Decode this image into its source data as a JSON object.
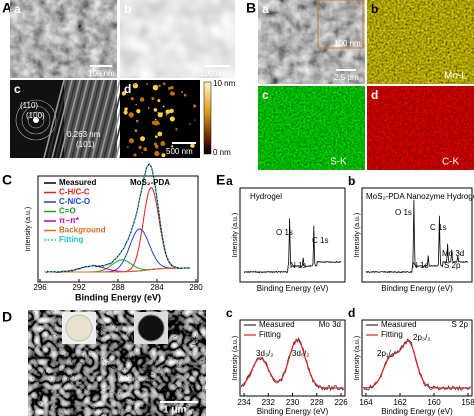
{
  "panels": {
    "A": {
      "label": "A",
      "sub": [
        "a",
        "b",
        "c",
        "d"
      ],
      "scale_bars": [
        "100 nm",
        "100 nm",
        "500 nm"
      ],
      "diffraction": [
        "(110)",
        "(100)"
      ],
      "lattice": [
        "0.263 nm",
        "(101)"
      ],
      "colorbar": [
        "10 nm",
        "0 nm"
      ]
    },
    "B": {
      "label": "B",
      "sub": [
        "a",
        "b",
        "c",
        "d"
      ],
      "scale_bars": [
        "100 nm",
        "2.5 μm"
      ],
      "elements": [
        "Mo-L",
        "S-K",
        "C-K"
      ]
    },
    "C": {
      "label": "C",
      "title": "MoS₂-PDA",
      "legend": [
        "Measured",
        "C-H/C-C",
        "C-N/C-O",
        "C=O",
        "π−π*",
        "Background",
        "Fitting"
      ],
      "x_label": "Binding Energy (eV)",
      "y_label": "Intensity (a.u.)",
      "x_ticks": [
        "296",
        "292",
        "288",
        "284",
        "280"
      ]
    },
    "D": {
      "label": "D",
      "scale_bar": "1 μm"
    },
    "E": {
      "label": "E",
      "a": {
        "sub": "a",
        "title": "Hydrogel",
        "peaks": [
          "O 1s",
          "C 1s",
          "N 1s"
        ],
        "x_label": "Binding Energy (eV)",
        "y_label": "Intensity (a.u.)"
      },
      "b": {
        "sub": "b",
        "title": "MoS₂-PDA Nanozyme Hydrogel",
        "peaks": [
          "O 1s",
          "C 1s",
          "N 1s",
          "Mo 3d",
          "S 2p"
        ],
        "x_label": "Binding Energy (eV)",
        "y_label": "Intensity (a.u.)"
      },
      "c": {
        "sub": "c",
        "title": "Mo 3d",
        "legend": [
          "Measured",
          "Fitting"
        ],
        "peaks": [
          "3d₃/₂",
          "3d₅/₂"
        ],
        "x_ticks": [
          "234",
          "232",
          "230",
          "228",
          "226"
        ],
        "x_label": "Binding Energy (eV)",
        "y_label": "Intensity (a.u.)"
      },
      "d": {
        "sub": "d",
        "title": "S 2p",
        "legend": [
          "Measured",
          "Fitting"
        ],
        "peaks": [
          "2p₁/₂",
          "2p₃/₂"
        ],
        "x_ticks": [
          "164",
          "162",
          "160",
          "158"
        ],
        "x_label": "Binding Energy (eV)",
        "y_label": "Intensity (a.u.)"
      }
    }
  }
}
